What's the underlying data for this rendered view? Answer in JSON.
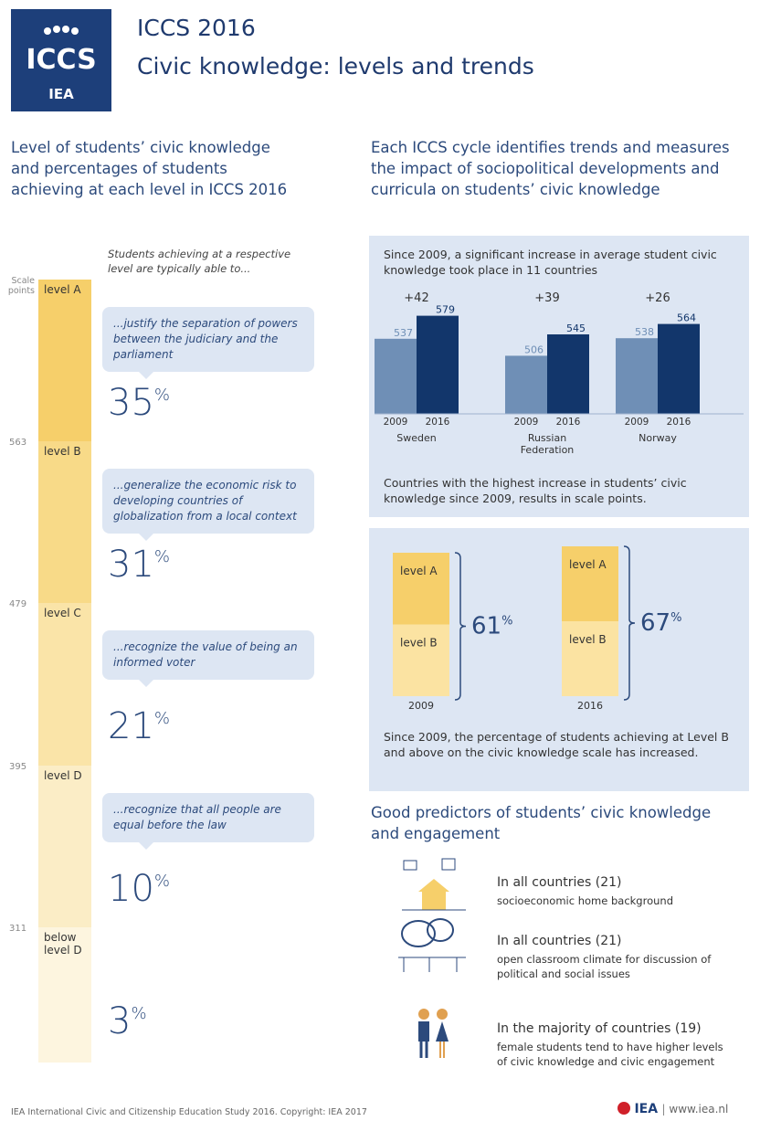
{
  "header": {
    "logo": "ICCS",
    "logo_org": "IEA",
    "title": "ICCS 2016",
    "subtitle": "Civic knowledge: levels and trends"
  },
  "left": {
    "heading": "Level of students’ civic knowledge and percentages of students achieving at each level in ICCS 2016",
    "intro": "Students achieving at a respective level are typically able to...",
    "scale_label": "Scale points",
    "percent_sign": "%",
    "cutoffs": [
      563,
      479,
      395,
      311
    ],
    "levels": [
      {
        "name": "level A",
        "text": "...justify the separation of powers between the judiciary and the parliament",
        "percent": 35
      },
      {
        "name": "level B",
        "text": "...generalize the economic risk to developing countries of globalization from a local context",
        "percent": 31
      },
      {
        "name": "level C",
        "text": "...recognize the value of being an informed voter",
        "percent": 21
      },
      {
        "name": "level D",
        "text": "...recognize that all people are equal before the law",
        "percent": 10
      },
      {
        "name": "below level D",
        "percent": 3
      }
    ]
  },
  "right": {
    "heading": "Each ICCS cycle identifies trends and measures the impact of sociopolitical developments and curricula on students’ civic knowledge",
    "trend": {
      "heading": "Since 2009, a significant increase in average student civic knowledge took place in 11 countries",
      "years": [
        "2009",
        "2016"
      ],
      "ylim": [
        400,
        600
      ],
      "countries": [
        {
          "name": "Sweden",
          "change": "+42",
          "values": [
            537,
            579
          ]
        },
        {
          "name": "Russian Federation",
          "change": "+39",
          "values": [
            506,
            545
          ]
        },
        {
          "name": "Norway",
          "change": "+26",
          "values": [
            538,
            564
          ]
        }
      ],
      "caption": "Countries with the highest increase in students’ civic knowledge since 2009, results in scale points."
    },
    "comparison": {
      "items": [
        {
          "year": "2009",
          "levels": [
            "level A",
            "level B"
          ],
          "percent": 61
        },
        {
          "year": "2016",
          "levels": [
            "level A",
            "level B"
          ],
          "percent": 67
        }
      ],
      "percent_sign": "%",
      "caption": "Since 2009, the percentage of students achieving at Level B and above on the civic knowledge scale has increased."
    },
    "predictors": {
      "heading": "Good predictors of students’ civic knowledge and engagement",
      "items": [
        {
          "title": "In all countries (21)",
          "text": "socioeconomic home background"
        },
        {
          "title": "In all countries (21)",
          "text": "open classroom climate for discussion of political and social issues"
        },
        {
          "title": "In the majority of countries (19)",
          "text": "female students tend to have higher levels of civic knowledge and civic engagement"
        }
      ]
    }
  },
  "footer": {
    "note": "IEA International Civic and Citizenship Education Study 2016. Copyright: IEA 2017",
    "org": "IEA",
    "url": "www.iea.nl"
  }
}
